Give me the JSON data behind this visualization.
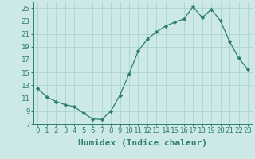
{
  "x": [
    0,
    1,
    2,
    3,
    4,
    5,
    6,
    7,
    8,
    9,
    10,
    11,
    12,
    13,
    14,
    15,
    16,
    17,
    18,
    19,
    20,
    21,
    22,
    23
  ],
  "y": [
    12.5,
    11.2,
    10.5,
    10.0,
    9.7,
    8.7,
    7.8,
    7.7,
    9.0,
    11.5,
    14.8,
    18.3,
    20.2,
    21.3,
    22.2,
    22.8,
    23.3,
    25.2,
    23.5,
    24.8,
    23.0,
    19.8,
    17.2,
    15.5
  ],
  "line_color": "#2e7d6e",
  "marker": "D",
  "marker_size": 2.2,
  "bg_color": "#cce9e7",
  "grid_color": "#aad4d0",
  "xlabel": "Humidex (Indice chaleur)",
  "xlim": [
    -0.5,
    23.5
  ],
  "ylim": [
    7,
    26
  ],
  "yticks": [
    7,
    9,
    11,
    13,
    15,
    17,
    19,
    21,
    23,
    25
  ],
  "xticks": [
    0,
    1,
    2,
    3,
    4,
    5,
    6,
    7,
    8,
    9,
    10,
    11,
    12,
    13,
    14,
    15,
    16,
    17,
    18,
    19,
    20,
    21,
    22,
    23
  ],
  "tick_fontsize": 6.5,
  "xlabel_fontsize": 8
}
